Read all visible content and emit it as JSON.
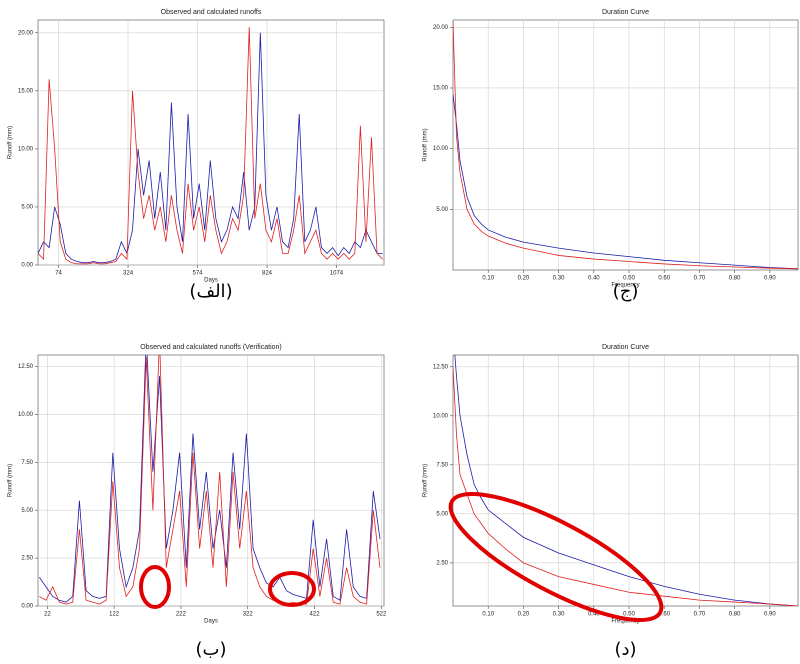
{
  "chart_data": [
    {
      "type": "line",
      "title": "Observed and calculated runoffs",
      "x_label": "Days",
      "y_label": "Runoff (mm)",
      "caption": "(الف)",
      "x": [
        0,
        20,
        40,
        60,
        80,
        100,
        120,
        140,
        160,
        180,
        200,
        220,
        240,
        260,
        280,
        300,
        320,
        340,
        360,
        380,
        400,
        420,
        440,
        460,
        480,
        500,
        520,
        540,
        560,
        580,
        600,
        620,
        640,
        660,
        680,
        700,
        720,
        740,
        760,
        780,
        800,
        820,
        840,
        860,
        880,
        900,
        920,
        940,
        960,
        980,
        1000,
        1020,
        1040,
        1060,
        1080,
        1100,
        1120,
        1140,
        1160,
        1180,
        1200,
        1220,
        1240
      ],
      "series": [
        {
          "color": "#1c1ca8",
          "values": [
            1,
            2,
            1.5,
            5,
            3.5,
            1,
            0.5,
            0.3,
            0.2,
            0.2,
            0.3,
            0.2,
            0.2,
            0.3,
            0.5,
            2,
            1,
            3,
            10,
            6,
            9,
            4,
            8,
            3,
            14,
            5,
            2,
            13,
            4,
            7,
            3,
            9,
            4,
            2,
            3,
            5,
            4,
            8,
            3,
            5,
            20,
            6,
            3,
            5,
            2,
            1.5,
            4,
            13,
            2,
            3,
            5,
            1.5,
            1,
            1.5,
            0.8,
            1.5,
            1,
            2,
            1.5,
            3,
            2,
            1,
            1
          ]
        },
        {
          "color": "#e02020",
          "values": [
            1,
            0.5,
            16,
            10,
            2,
            0.5,
            0.2,
            0.1,
            0.1,
            0.1,
            0.2,
            0.1,
            0.1,
            0.2,
            0.3,
            1,
            0.5,
            15,
            8,
            4,
            6,
            3,
            5,
            2,
            6,
            3,
            1,
            7,
            3,
            5,
            2,
            6,
            3,
            1,
            2,
            4,
            3,
            6,
            20.5,
            4,
            7,
            3,
            2,
            4,
            1,
            1,
            3,
            6,
            1,
            2,
            3,
            1,
            0.5,
            1,
            0.5,
            1,
            0.5,
            1,
            12,
            2,
            11,
            1,
            0.5
          ]
        }
      ],
      "xlim": [
        0,
        1245
      ],
      "xticks": [
        74,
        324,
        574,
        824,
        1074
      ],
      "ylim": [
        0,
        21.1
      ],
      "yticks": [
        {
          "value": 0,
          "label": "0.00"
        },
        {
          "value": 5,
          "label": "5.00"
        },
        {
          "value": 10,
          "label": "10.00"
        },
        {
          "value": 15,
          "label": "15.00"
        },
        {
          "value": 20,
          "label": "20.00"
        }
      ],
      "grid": true
    },
    {
      "type": "line",
      "title": "Duration Curve",
      "x_label": "Frequency",
      "y_label": "Runoff (mm)",
      "caption": "(ج)",
      "x": [
        0,
        0.01,
        0.02,
        0.04,
        0.06,
        0.08,
        0.1,
        0.15,
        0.2,
        0.3,
        0.4,
        0.5,
        0.6,
        0.7,
        0.8,
        0.9,
        0.98
      ],
      "series": [
        {
          "color": "#1c1ca8",
          "values": [
            14.5,
            12,
            9,
            6,
            4.5,
            3.8,
            3.3,
            2.7,
            2.3,
            1.8,
            1.4,
            1.1,
            0.8,
            0.6,
            0.4,
            0.2,
            0.1
          ]
        },
        {
          "color": "#e02020",
          "values": [
            20.5,
            11,
            8,
            5,
            3.8,
            3.2,
            2.8,
            2.2,
            1.8,
            1.2,
            0.9,
            0.7,
            0.5,
            0.35,
            0.25,
            0.15,
            0.1
          ]
        }
      ],
      "xlim": [
        0,
        0.98
      ],
      "xticks": [
        {
          "value": 0.1,
          "label": "0.10"
        },
        {
          "value": 0.2,
          "label": "0.20"
        },
        {
          "value": 0.3,
          "label": "0.30"
        },
        {
          "value": 0.4,
          "label": "0.40"
        },
        {
          "value": 0.5,
          "label": "0.50"
        },
        {
          "value": 0.6,
          "label": "0.60"
        },
        {
          "value": 0.7,
          "label": "0.70"
        },
        {
          "value": 0.8,
          "label": "0.80"
        },
        {
          "value": 0.9,
          "label": "0.90"
        }
      ],
      "ylim": [
        0,
        20.6
      ],
      "yticks": [
        {
          "value": 5,
          "label": "5.00"
        },
        {
          "value": 10,
          "label": "10.00"
        },
        {
          "value": 15,
          "label": "15.00"
        },
        {
          "value": 20,
          "label": "20.00"
        }
      ],
      "grid": true
    },
    {
      "type": "line",
      "title": "Observed and calculated runoffs (Verification)",
      "x_label": "Days",
      "y_label": "Runoff (mm)",
      "caption": "(ب)",
      "x": [
        10,
        20,
        30,
        40,
        50,
        60,
        70,
        80,
        90,
        100,
        110,
        120,
        130,
        140,
        150,
        160,
        170,
        180,
        190,
        200,
        210,
        220,
        230,
        240,
        250,
        260,
        270,
        280,
        290,
        300,
        310,
        320,
        330,
        340,
        350,
        360,
        370,
        380,
        390,
        400,
        410,
        420,
        430,
        440,
        450,
        460,
        470,
        480,
        490,
        500,
        510,
        520
      ],
      "series": [
        {
          "color": "#1c1ca8",
          "values": [
            1.5,
            1,
            0.5,
            0.3,
            0.2,
            0.5,
            5.5,
            0.8,
            0.5,
            0.4,
            0.5,
            8,
            3,
            1,
            2,
            4,
            14,
            7,
            12,
            3,
            5,
            8,
            2,
            9,
            4,
            7,
            3,
            5,
            2,
            8,
            4,
            9,
            3,
            2,
            1.2,
            1,
            1.5,
            0.8,
            0.6,
            0.5,
            0.4,
            4.5,
            1,
            3.5,
            0.5,
            0.3,
            4,
            1,
            0.5,
            0.4,
            6,
            3.5
          ]
        },
        {
          "color": "#e02020",
          "values": [
            0.5,
            0.3,
            1,
            0.2,
            0.1,
            0.2,
            4,
            0.3,
            0.2,
            0.1,
            0.3,
            6.5,
            2,
            0.5,
            1,
            3,
            13,
            5,
            14,
            2,
            4,
            6,
            1,
            8,
            3,
            6,
            2,
            7,
            1,
            7,
            3,
            6,
            2,
            1,
            0.5,
            0.3,
            0.2,
            0.1,
            0.2,
            0.1,
            0.1,
            3,
            0.5,
            2.5,
            0.2,
            0.1,
            2,
            0.5,
            0.2,
            0.1,
            5,
            2
          ]
        }
      ],
      "xlim": [
        8,
        526
      ],
      "xticks": [
        22,
        122,
        222,
        322,
        422,
        522
      ],
      "ylim": [
        0,
        13.1
      ],
      "yticks": [
        {
          "value": 0,
          "label": "0.00"
        },
        {
          "value": 2.5,
          "label": "2.50"
        },
        {
          "value": 5,
          "label": "5.00"
        },
        {
          "value": 7.5,
          "label": "7.50"
        },
        {
          "value": 10,
          "label": "10.00"
        },
        {
          "value": 12.5,
          "label": "12.50"
        }
      ],
      "grid": true
    },
    {
      "type": "line",
      "title": "Duration Curve",
      "x_label": "Frequency",
      "y_label": "Runoff (mm)",
      "caption": "(د)",
      "x": [
        0,
        0.01,
        0.02,
        0.04,
        0.06,
        0.08,
        0.1,
        0.15,
        0.2,
        0.3,
        0.4,
        0.5,
        0.6,
        0.7,
        0.8,
        0.9,
        0.98
      ],
      "series": [
        {
          "color": "#1c1ca8",
          "values": [
            14.3,
            12,
            10,
            8,
            6.5,
            5.8,
            5.2,
            4.5,
            3.8,
            3.0,
            2.4,
            1.8,
            1.3,
            0.9,
            0.6,
            0.4,
            0.3
          ]
        },
        {
          "color": "#e02020",
          "values": [
            12.5,
            9,
            7,
            6,
            5,
            4.5,
            4,
            3.2,
            2.5,
            1.8,
            1.4,
            1.0,
            0.8,
            0.6,
            0.5,
            0.4,
            0.3
          ]
        }
      ],
      "xlim": [
        0,
        0.98
      ],
      "xticks": [
        {
          "value": 0.1,
          "label": "0.10"
        },
        {
          "value": 0.2,
          "label": "0.20"
        },
        {
          "value": 0.3,
          "label": "0.30"
        },
        {
          "value": 0.4,
          "label": "0.40"
        },
        {
          "value": 0.5,
          "label": "0.50"
        },
        {
          "value": 0.6,
          "label": "0.60"
        },
        {
          "value": 0.7,
          "label": "0.70"
        },
        {
          "value": 0.8,
          "label": "0.80"
        },
        {
          "value": 0.9,
          "label": "0.90"
        }
      ],
      "ylim": [
        0.3,
        13.1
      ],
      "yticks": [
        {
          "value": 2.5,
          "label": "2.50"
        },
        {
          "value": 5,
          "label": "5.00"
        },
        {
          "value": 7.5,
          "label": "7.50"
        },
        {
          "value": 10,
          "label": "10.00"
        },
        {
          "value": 12.5,
          "label": "12.50"
        }
      ],
      "grid": true
    }
  ]
}
